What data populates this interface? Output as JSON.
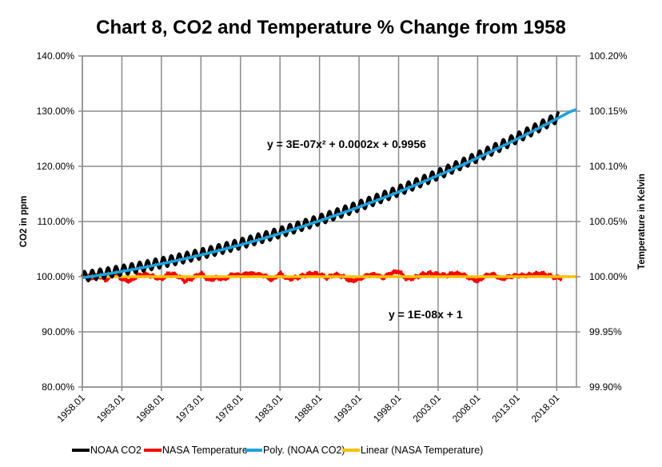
{
  "chart_data": {
    "type": "line",
    "title": "Chart 8, CO2 and Temperature % Change from 1958",
    "xlabel": "",
    "ylabel": "CO2 in ppm",
    "y2label": "Temperature in Kelvin",
    "xlim": [
      1958.0,
      2020.5
    ],
    "ylim": [
      0.8,
      1.4
    ],
    "y2lim": [
      0.999,
      1.002
    ],
    "grid": true,
    "x_ticks": [
      1958,
      1963,
      1968,
      1973,
      1978,
      1983,
      1988,
      1993,
      1998,
      2003,
      2008,
      2013,
      2018
    ],
    "x_tick_labels": [
      "1958.01",
      "1963.01",
      "1968.01",
      "1973.01",
      "1978.01",
      "1983.01",
      "1988.01",
      "1993.01",
      "1998.01",
      "2003.01",
      "2008.01",
      "2013.01",
      "2018.01"
    ],
    "y_ticks": [
      0.8,
      0.9,
      1.0,
      1.1,
      1.2,
      1.3,
      1.4
    ],
    "y_tick_labels": [
      "80.00%",
      "90.00%",
      "100.00%",
      "110.00%",
      "120.00%",
      "130.00%",
      "140.00%"
    ],
    "y2_ticks": [
      0.999,
      0.9995,
      1.0,
      1.0005,
      1.001,
      1.0015,
      1.002
    ],
    "y2_tick_labels": [
      "99.90%",
      "99.95%",
      "100.00%",
      "100.05%",
      "100.10%",
      "100.15%",
      "100.20%"
    ],
    "series": [
      {
        "name": "NOAA CO2",
        "axis": "left",
        "color": "#000000",
        "x": [
          1958,
          1960,
          1962,
          1964,
          1966,
          1968,
          1970,
          1972,
          1974,
          1976,
          1978,
          1980,
          1982,
          1984,
          1986,
          1988,
          1990,
          1992,
          1994,
          1996,
          1998,
          2000,
          2002,
          2004,
          2006,
          2008,
          2010,
          2012,
          2014,
          2016,
          2018
        ],
        "values": [
          1.0,
          1.006,
          1.012,
          1.016,
          1.022,
          1.028,
          1.035,
          1.041,
          1.047,
          1.053,
          1.062,
          1.072,
          1.08,
          1.088,
          1.096,
          1.104,
          1.112,
          1.119,
          1.124,
          1.132,
          1.142,
          1.15,
          1.158,
          1.168,
          1.178,
          1.187,
          1.197,
          1.208,
          1.218,
          1.232,
          1.29
        ],
        "seasonal_amplitude": 0.009
      },
      {
        "name": "NASA Temperature",
        "axis": "right",
        "color": "#ff0000",
        "x": [
          1958,
          1959,
          1960,
          1961,
          1962,
          1963,
          1964,
          1965,
          1966,
          1967,
          1968,
          1969,
          1970,
          1971,
          1972,
          1973,
          1974,
          1975,
          1976,
          1977,
          1978,
          1979,
          1980,
          1981,
          1982,
          1983,
          1984,
          1985,
          1986,
          1987,
          1988,
          1989,
          1990,
          1991,
          1992,
          1993,
          1994,
          1995,
          1996,
          1997,
          1998,
          1999,
          2000,
          2001,
          2002,
          2003,
          2004,
          2005,
          2006,
          2007,
          2008,
          2009,
          2010,
          2011,
          2012,
          2013,
          2014,
          2015,
          2016,
          2017,
          2018
        ],
        "values": [
          1.00002,
          0.99999,
          1.00001,
          0.99997,
          1.00003,
          0.99998,
          0.99996,
          1.00001,
          1.00002,
          1.0,
          0.99998,
          1.00003,
          1.00001,
          0.99996,
          0.99999,
          1.00003,
          0.99997,
          0.99999,
          0.99998,
          1.00002,
          1.00001,
          1.00003,
          1.00002,
          1.00001,
          0.99997,
          1.00003,
          0.99998,
          0.99999,
          1.00001,
          1.00003,
          1.00002,
          0.99999,
          1.00002,
          1.0,
          0.99996,
          0.99998,
          1.00001,
          1.00002,
          0.99999,
          1.00003,
          1.00005,
          0.99998,
          0.99999,
          1.00002,
          1.00003,
          1.00002,
          1.00001,
          1.00003,
          1.00002,
          0.99999,
          0.99996,
          1.00001,
          1.00002,
          0.99998,
          1.0,
          1.00001,
          1.00001,
          1.00002,
          1.00003,
          1.00001,
          0.99999
        ]
      },
      {
        "name": "Poly. (NOAA CO2)",
        "axis": "left",
        "color": "#1aa3e0",
        "trendline": "polynomial",
        "equation": "y = 3E-07x² + 0.0002x + 0.9956",
        "x": [
          1958,
          2020.5
        ],
        "values": [
          1.0,
          1.303
        ]
      },
      {
        "name": "Linear (NASA Temperature)",
        "axis": "right",
        "color": "#ffc000",
        "trendline": "linear",
        "equation": "y = 1E-08x + 1",
        "x": [
          1958,
          2020.5
        ],
        "values": [
          1.0,
          1.0
        ]
      }
    ],
    "annotations": [
      {
        "text": "y = 3E-07x² + 0.0002x + 0.9956",
        "near": "CO2 trend, upper center"
      },
      {
        "text": "y = 1E-08x + 1",
        "near": "temperature trend, lower center"
      }
    ],
    "legend": {
      "position": "bottom",
      "entries": [
        "NOAA CO2",
        "NASA Temperature",
        "Poly. (NOAA CO2)",
        "Linear (NASA Temperature)"
      ]
    }
  }
}
